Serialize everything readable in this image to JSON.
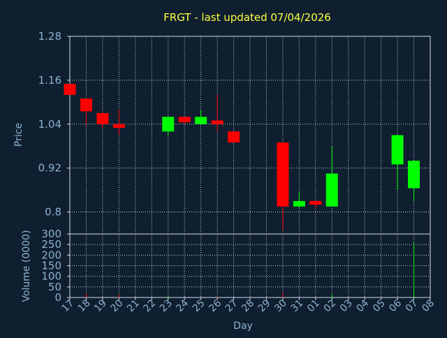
{
  "chart_data": {
    "type": "candlestick",
    "title": "FRGT - last updated 07/04/2026",
    "xlabel": "Day",
    "colors": {
      "background": "#0f1f30",
      "axis": "#d6dee6",
      "text": "#8fb2cf",
      "title": "#ffff40",
      "grid": "#c8d0d8",
      "up": "#00ff00",
      "down": "#ff0000"
    },
    "x_ticks": [
      "17",
      "18",
      "19",
      "20",
      "21",
      "22",
      "23",
      "24",
      "25",
      "26",
      "27",
      "28",
      "29",
      "30",
      "31",
      "01",
      "02",
      "03",
      "04",
      "05",
      "06",
      "07",
      "08"
    ],
    "price_panel": {
      "ylabel": "Price",
      "ylim": [
        0.74,
        1.28
      ],
      "yticks": [
        "1.28",
        "1.16",
        "1.04",
        "0.92",
        "0.8"
      ],
      "candles": [
        {
          "day": "17",
          "open": 1.15,
          "high": 1.15,
          "low": 1.12,
          "close": 1.12
        },
        {
          "day": "18",
          "open": 1.11,
          "high": 1.11,
          "low": 1.04,
          "close": 1.075
        },
        {
          "day": "19",
          "open": 1.07,
          "high": 1.075,
          "low": 1.03,
          "close": 1.04
        },
        {
          "day": "20",
          "open": 1.04,
          "high": 1.08,
          "low": 1.01,
          "close": 1.03
        },
        {
          "day": "23",
          "open": 1.02,
          "high": 1.06,
          "low": 1.01,
          "close": 1.06
        },
        {
          "day": "24",
          "open": 1.06,
          "high": 1.06,
          "low": 1.04,
          "close": 1.045
        },
        {
          "day": "25",
          "open": 1.04,
          "high": 1.08,
          "low": 1.04,
          "close": 1.06
        },
        {
          "day": "26",
          "open": 1.05,
          "high": 1.12,
          "low": 1.02,
          "close": 1.04
        },
        {
          "day": "27",
          "open": 1.02,
          "high": 1.02,
          "low": 0.99,
          "close": 0.99
        },
        {
          "day": "30",
          "open": 0.99,
          "high": 0.99,
          "low": 0.75,
          "close": 0.815
        },
        {
          "day": "31",
          "open": 0.815,
          "high": 0.855,
          "low": 0.81,
          "close": 0.83
        },
        {
          "day": "01",
          "open": 0.83,
          "high": 0.83,
          "low": 0.81,
          "close": 0.82
        },
        {
          "day": "02",
          "open": 0.815,
          "high": 0.98,
          "low": 0.815,
          "close": 0.905
        },
        {
          "day": "06",
          "open": 0.93,
          "high": 1.01,
          "low": 0.86,
          "close": 1.01
        },
        {
          "day": "07",
          "open": 0.865,
          "high": 0.94,
          "low": 0.83,
          "close": 0.94
        }
      ]
    },
    "volume_panel": {
      "ylabel": "Volume (0000)",
      "ylim": [
        0,
        300
      ],
      "yticks": [
        "300",
        "250",
        "200",
        "150",
        "100",
        "50",
        "0"
      ],
      "bars": [
        {
          "day": "18",
          "value": 20,
          "color": "#ff0000"
        },
        {
          "day": "20",
          "value": 15,
          "color": "#ff0000"
        },
        {
          "day": "23",
          "value": 5,
          "color": "#00ff00"
        },
        {
          "day": "26",
          "value": 5,
          "color": "#ff0000"
        },
        {
          "day": "30",
          "value": 25,
          "color": "#ff0000"
        },
        {
          "day": "02",
          "value": 15,
          "color": "#00ff00"
        },
        {
          "day": "07",
          "value": 260,
          "color": "#00ff00"
        }
      ]
    }
  }
}
